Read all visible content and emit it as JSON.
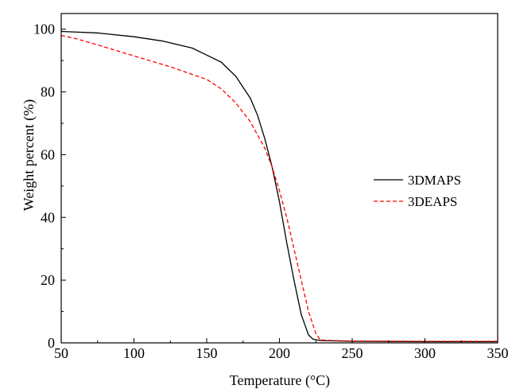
{
  "chart_data": {
    "type": "line",
    "title": "",
    "xlabel": "Temperature (°C)",
    "ylabel": "Weight percent (%)",
    "xlim": [
      50,
      350
    ],
    "ylim": [
      0,
      105
    ],
    "x_ticks": [
      50,
      100,
      150,
      200,
      250,
      300,
      350
    ],
    "y_ticks": [
      0,
      20,
      40,
      60,
      80,
      100
    ],
    "grid": false,
    "legend_position": "right",
    "series": [
      {
        "name": "3DMAPS",
        "color": "#000000",
        "dash": "solid",
        "x": [
          50,
          75,
          100,
          120,
          140,
          160,
          170,
          180,
          185,
          190,
          195,
          200,
          205,
          210,
          215,
          220,
          223,
          226,
          230,
          250,
          300,
          350
        ],
        "y": [
          99.3,
          98.8,
          97.6,
          96.2,
          94.0,
          89.5,
          85.0,
          78.0,
          72.5,
          65.0,
          56.0,
          45.0,
          32.0,
          20.0,
          9.0,
          2.5,
          1.2,
          0.9,
          0.7,
          0.5,
          0.4,
          0.4
        ]
      },
      {
        "name": "3DEAPS",
        "color": "#ff0000",
        "dash": "dashed",
        "x": [
          50,
          60,
          75,
          100,
          125,
          150,
          160,
          170,
          180,
          190,
          195,
          200,
          205,
          210,
          215,
          220,
          225,
          228,
          232,
          250,
          300,
          350
        ],
        "y": [
          98.0,
          97.0,
          95.0,
          91.5,
          88.0,
          84.0,
          81.0,
          76.5,
          70.5,
          62.0,
          56.0,
          48.5,
          40.0,
          30.0,
          20.0,
          10.0,
          3.0,
          1.0,
          0.8,
          0.6,
          0.5,
          0.5
        ]
      }
    ]
  }
}
